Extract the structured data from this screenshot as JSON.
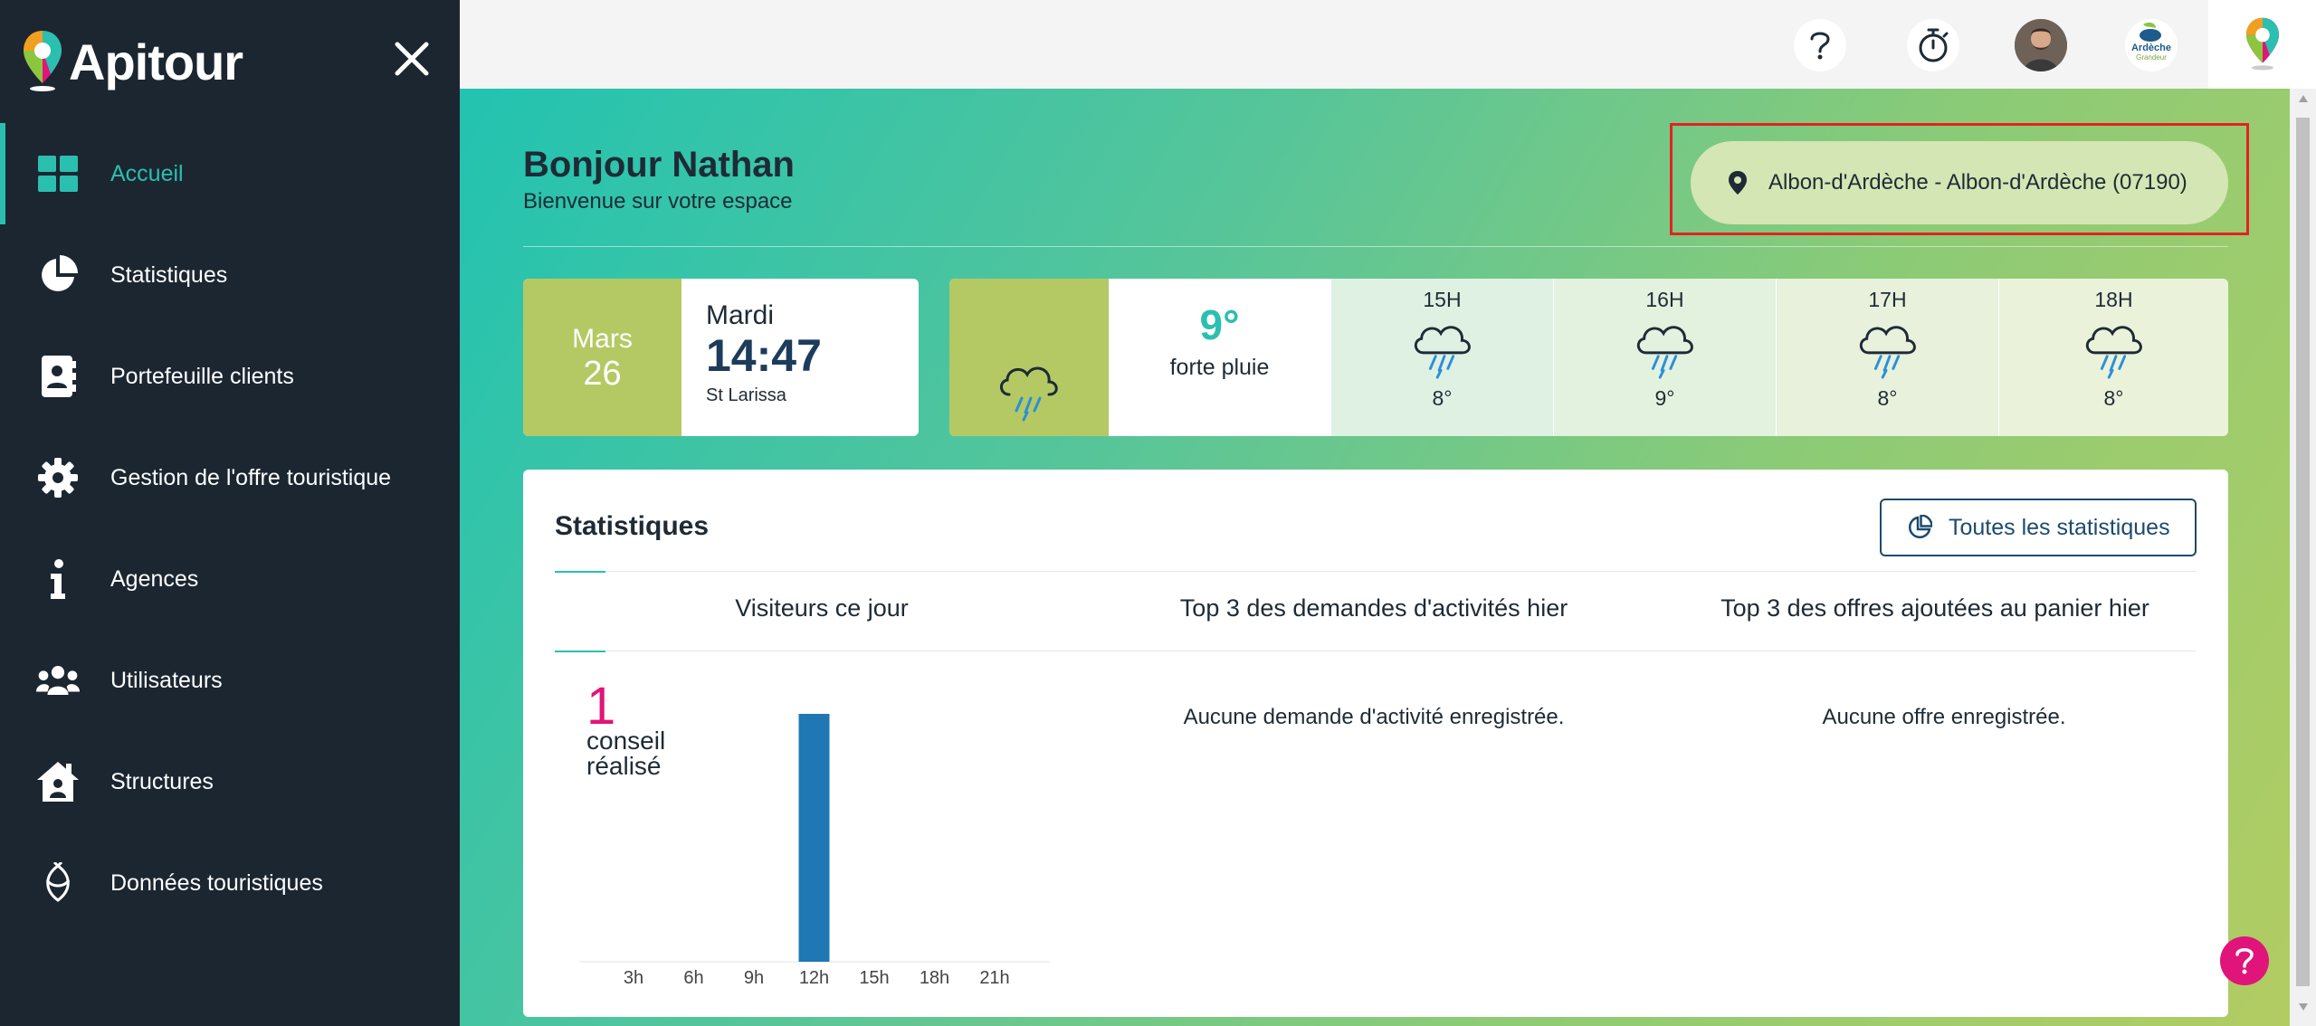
{
  "app": {
    "name": "Apitour"
  },
  "sidebar": {
    "items": [
      {
        "label": "Accueil",
        "icon": "dashboard-grid-icon",
        "active": true
      },
      {
        "label": "Statistiques",
        "icon": "pie-chart-icon"
      },
      {
        "label": "Portefeuille clients",
        "icon": "contact-book-icon"
      },
      {
        "label": "Gestion de l'offre touristique",
        "icon": "gear-icon"
      },
      {
        "label": "Agences",
        "icon": "info-icon"
      },
      {
        "label": "Utilisateurs",
        "icon": "users-icon"
      },
      {
        "label": "Structures",
        "icon": "house-user-icon"
      },
      {
        "label": "Données touristiques",
        "icon": "cocoon-icon"
      }
    ]
  },
  "topbar": {
    "icons": [
      "help-icon",
      "stopwatch-icon",
      "user-avatar",
      "ardeche-logo",
      "apitour-pin-logo"
    ],
    "ardeche_logo_line1": "Ardèche",
    "ardeche_logo_line2": "Grandeur"
  },
  "greeting": {
    "title": "Bonjour Nathan",
    "subtitle": "Bienvenue sur votre espace"
  },
  "location": {
    "label": "Albon-d'Ardèche - Albon-d'Ardèche (07190)"
  },
  "date": {
    "month": "Mars",
    "day": "26",
    "weekday": "Mardi",
    "time": "14:47",
    "saint": "St Larissa"
  },
  "weather": {
    "current": {
      "temp": "9°",
      "desc": "forte pluie",
      "icon": "cloud-rain-icon"
    },
    "hours": [
      {
        "label": "15H",
        "temp": "8°"
      },
      {
        "label": "16H",
        "temp": "9°"
      },
      {
        "label": "17H",
        "temp": "8°"
      },
      {
        "label": "18H",
        "temp": "8°"
      }
    ],
    "colors": {
      "accent": "#2bbfb0",
      "green": "#b4c964"
    }
  },
  "stats": {
    "title": "Statistiques",
    "button_label": "Toutes les statistiques",
    "columns": [
      "Visiteurs ce jour",
      "Top 3 des demandes d'activités hier",
      "Top 3 des offres ajoutées au panier hier"
    ],
    "count": "1",
    "count_label_line1": "conseil",
    "count_label_line2": "réalisé",
    "empty_activities": "Aucune demande d'activité enregistrée.",
    "empty_offers": "Aucune offre enregistrée."
  },
  "chart_data": {
    "type": "bar",
    "categories": [
      "3h",
      "6h",
      "9h",
      "12h",
      "15h",
      "18h",
      "21h"
    ],
    "values": [
      0,
      0,
      0,
      1,
      0,
      0,
      0
    ],
    "title": "",
    "xlabel": "",
    "ylabel": "",
    "ylim": [
      0,
      1
    ],
    "bar_color": "#1f77b4"
  }
}
